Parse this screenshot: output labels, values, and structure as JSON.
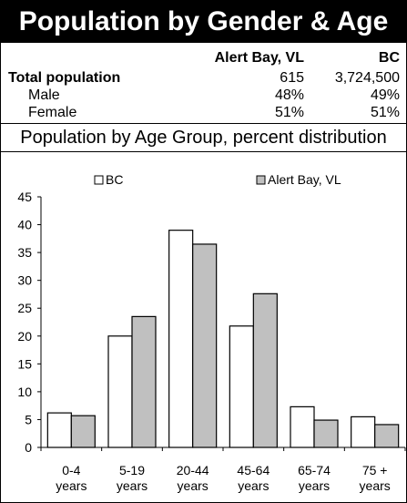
{
  "header": {
    "title": "Population by Gender & Age"
  },
  "stats_table": {
    "columns": [
      "",
      "Alert Bay, VL",
      "BC"
    ],
    "rows": [
      {
        "label": "Total population",
        "alert_bay": "615",
        "bc": "3,724,500"
      },
      {
        "label": "Male",
        "alert_bay": "48%",
        "bc": "49%"
      },
      {
        "label": "Female",
        "alert_bay": "51%",
        "bc": "51%"
      }
    ]
  },
  "chart_data": {
    "type": "bar",
    "title": "Population by Age Group, percent distribution",
    "categories": [
      "0-4 years",
      "5-19 years",
      "20-44 years",
      "45-64 years",
      "65-74 years",
      "75 + years"
    ],
    "category_lines": [
      [
        "0-4",
        "years"
      ],
      [
        "5-19",
        "years"
      ],
      [
        "20-44",
        "years"
      ],
      [
        "45-64",
        "years"
      ],
      [
        "65-74",
        "years"
      ],
      [
        "75 +",
        "years"
      ]
    ],
    "series": [
      {
        "name": "BC",
        "color": "#ffffff",
        "values": [
          6.2,
          20,
          39,
          21.8,
          7.3,
          5.5
        ]
      },
      {
        "name": "Alert Bay, VL",
        "color": "#c0c0c0",
        "values": [
          5.7,
          23.5,
          36.5,
          27.6,
          4.9,
          4.1
        ]
      }
    ],
    "ylim": [
      0,
      45
    ],
    "yticks": [
      0,
      5,
      10,
      15,
      20,
      25,
      30,
      35,
      40,
      45
    ],
    "grid": false,
    "legend_position": "top"
  }
}
